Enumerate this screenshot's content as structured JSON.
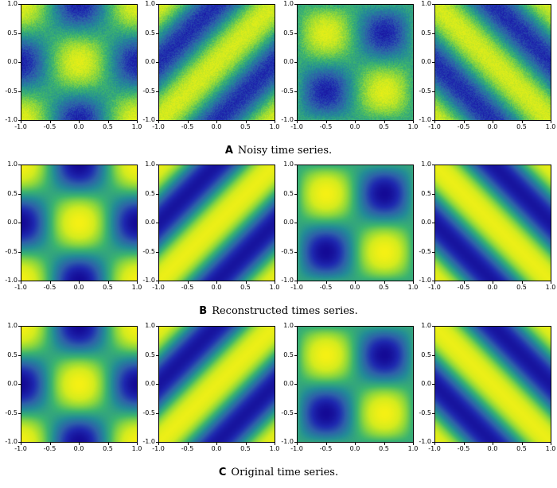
{
  "chart_data": [
    {
      "type": "heatmap",
      "label": "A",
      "caption": "Noisy time series.",
      "panels": [
        {
          "pattern": "cos-product",
          "noise": true
        },
        {
          "pattern": "diagonal-up",
          "noise": true
        },
        {
          "pattern": "sin-product",
          "noise": true
        },
        {
          "pattern": "diagonal-down",
          "noise": true
        }
      ],
      "xlim": [
        -1.0,
        1.0
      ],
      "ylim": [
        -1.0,
        1.0
      ],
      "xticks": [
        "-1.0",
        "-0.5",
        "0.0",
        "0.5",
        "1.0"
      ],
      "yticks": [
        "1.0",
        "0.5",
        "0.0",
        "-0.5",
        "-1.0"
      ],
      "colormap": "viridis"
    },
    {
      "type": "heatmap",
      "label": "B",
      "caption": "Reconstructed times series.",
      "panels": [
        {
          "pattern": "cos-product",
          "noise": false
        },
        {
          "pattern": "diagonal-up",
          "noise": false
        },
        {
          "pattern": "sin-product",
          "noise": false
        },
        {
          "pattern": "diagonal-down",
          "noise": false
        }
      ],
      "xlim": [
        -1.0,
        1.0
      ],
      "ylim": [
        -1.0,
        1.0
      ],
      "xticks": [
        "-1.0",
        "-0.5",
        "0.0",
        "0.5",
        "1.0"
      ],
      "yticks": [
        "1.0",
        "0.5",
        "0.0",
        "-0.5",
        "-1.0"
      ],
      "colormap": "viridis"
    },
    {
      "type": "heatmap",
      "label": "C",
      "caption": "Original time series.",
      "panels": [
        {
          "pattern": "cos-product",
          "noise": false
        },
        {
          "pattern": "diagonal-up",
          "noise": false
        },
        {
          "pattern": "sin-product",
          "noise": false
        },
        {
          "pattern": "diagonal-down",
          "noise": false
        }
      ],
      "xlim": [
        -1.0,
        1.0
      ],
      "ylim": [
        -1.0,
        1.0
      ],
      "xticks": [
        "-1.0",
        "-0.5",
        "0.0",
        "0.5",
        "1.0"
      ],
      "yticks": [
        "1.0",
        "0.5",
        "0.0",
        "-0.5",
        "-1.0"
      ],
      "colormap": "viridis"
    }
  ]
}
